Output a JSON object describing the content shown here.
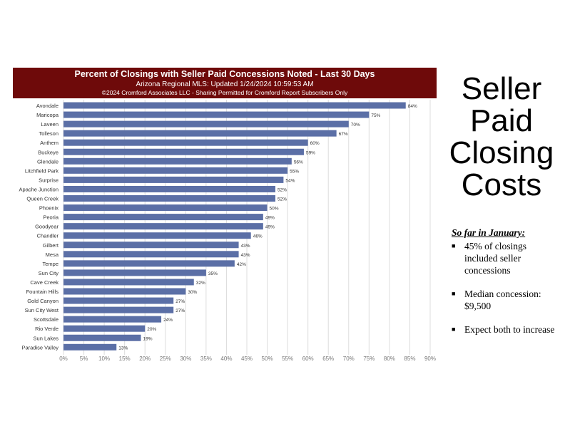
{
  "header": {
    "title": "Percent of Closings with Seller Paid Concessions Noted -  Last 30 Days",
    "subtitle": "Arizona Regional MLS: Updated 1/24/2024 10:59:53 AM",
    "credit": "©2024 Cromford Associates LLC - Sharing Permitted for Cromford Report Subscribers Only",
    "background": "#6e0a0a"
  },
  "heading_lines": [
    "Seller",
    "Paid",
    "Closing",
    "Costs"
  ],
  "notes": {
    "heading": "So far in January:",
    "items": [
      "45% of closings included seller concessions",
      "Median concession: $9,500",
      "Expect both to increase"
    ]
  },
  "chart_data": {
    "type": "bar",
    "orientation": "horizontal",
    "title": "Percent of Closings with Seller Paid Concessions Noted -  Last 30 Days",
    "categories": [
      "Avondale",
      "Maricopa",
      "Laveen",
      "Tolleson",
      "Anthem",
      "Buckeye",
      "Glendale",
      "Litchfield Park",
      "Surprise",
      "Apache Junction",
      "Queen Creek",
      "Phoenix",
      "Peoria",
      "Goodyear",
      "Chandler",
      "Gilbert",
      "Mesa",
      "Tempe",
      "Sun City",
      "Cave Creek",
      "Fountain Hills",
      "Gold Canyon",
      "Sun City West",
      "Scottsdale",
      "Rio Verde",
      "Sun Lakes",
      "Paradise Valley"
    ],
    "values": [
      84,
      75,
      70,
      67,
      60,
      59,
      56,
      55,
      54,
      52,
      52,
      50,
      49,
      49,
      46,
      43,
      43,
      42,
      35,
      32,
      30,
      27,
      27,
      24,
      20,
      19,
      13
    ],
    "value_labels": [
      "84%",
      "75%",
      "70%",
      "67%",
      "60%",
      "59%",
      "56%",
      "55%",
      "54%",
      "52%",
      "52%",
      "50%",
      "49%",
      "49%",
      "46%",
      "43%",
      "43%",
      "42%",
      "35%",
      "32%",
      "30%",
      "27%",
      "27%",
      "24%",
      "20%",
      "19%",
      "13%"
    ],
    "x_ticks": [
      0,
      5,
      10,
      15,
      20,
      25,
      30,
      35,
      40,
      45,
      50,
      55,
      60,
      65,
      70,
      75,
      80,
      85,
      90
    ],
    "x_tick_labels": [
      "0%",
      "5%",
      "10%",
      "15%",
      "20%",
      "25%",
      "30%",
      "35%",
      "40%",
      "45%",
      "50%",
      "55%",
      "60%",
      "65%",
      "70%",
      "75%",
      "80%",
      "85%",
      "90%"
    ],
    "xlim": [
      0,
      90
    ],
    "grid": true,
    "bar_color": "#5b6fa6",
    "grid_color": "#dcdcdc"
  }
}
